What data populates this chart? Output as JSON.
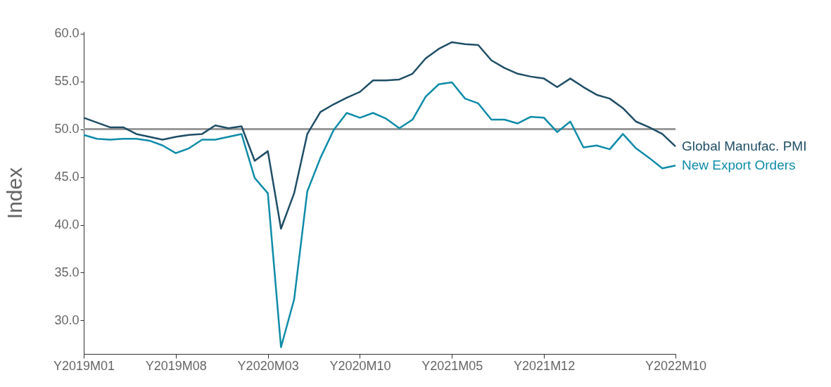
{
  "chart_data": {
    "type": "line",
    "ylabel": "Index",
    "categories": [
      "Y2019M01",
      null,
      null,
      null,
      null,
      null,
      null,
      "Y2019M08",
      null,
      null,
      null,
      null,
      null,
      null,
      "Y2020M03",
      null,
      null,
      null,
      null,
      null,
      null,
      "Y2020M10",
      null,
      null,
      null,
      null,
      null,
      null,
      "Y2021M05",
      null,
      null,
      null,
      null,
      null,
      null,
      "Y2021M12",
      null,
      null,
      null,
      null,
      null,
      null,
      null,
      null,
      null,
      "Y2022M10"
    ],
    "series": [
      {
        "name": "Global Manufac. PMI",
        "color": "#1f4e66",
        "values": [
          51.2,
          50.7,
          50.2,
          50.2,
          49.5,
          49.2,
          48.9,
          49.2,
          49.4,
          49.5,
          50.4,
          50.1,
          50.3,
          46.7,
          47.7,
          39.6,
          43.3,
          49.5,
          51.8,
          52.6,
          53.3,
          53.9,
          55.1,
          55.1,
          55.2,
          55.8,
          57.4,
          58.4,
          59.1,
          58.9,
          58.8,
          57.2,
          56.4,
          55.8,
          55.5,
          55.3,
          54.4,
          55.3,
          54.4,
          53.6,
          53.2,
          52.2,
          50.8,
          50.2,
          49.5,
          48.2
        ]
      },
      {
        "name": "New Export Orders",
        "color": "#0e8ba8",
        "values": [
          49.4,
          49.0,
          48.9,
          49.0,
          49.0,
          48.8,
          48.3,
          47.5,
          48.0,
          48.9,
          48.9,
          49.2,
          49.5,
          44.9,
          43.3,
          27.2,
          32.2,
          43.5,
          47.0,
          49.9,
          51.7,
          51.2,
          51.7,
          51.1,
          50.1,
          51.0,
          53.4,
          54.7,
          54.9,
          53.2,
          52.7,
          51.0,
          51.0,
          50.6,
          51.3,
          51.2,
          49.7,
          50.8,
          48.1,
          48.3,
          47.9,
          49.5,
          48.0,
          47.0,
          45.9,
          46.2
        ]
      }
    ],
    "ylim": [
      26.5,
      60.2
    ],
    "yticks": [
      {
        "value": 30,
        "label": "30.0"
      },
      {
        "value": 35,
        "label": "35.0"
      },
      {
        "value": 40,
        "label": "40.0"
      },
      {
        "value": 45,
        "label": "45.0"
      },
      {
        "value": 50,
        "label": "50.0"
      },
      {
        "value": 55,
        "label": "55.0"
      },
      {
        "value": 60,
        "label": "60.0"
      }
    ],
    "ref_lines": [
      {
        "axis": "y",
        "value": 50,
        "color": "#999999"
      }
    ],
    "grid": false,
    "legend": false,
    "line_style": "solid",
    "marker": "none"
  }
}
